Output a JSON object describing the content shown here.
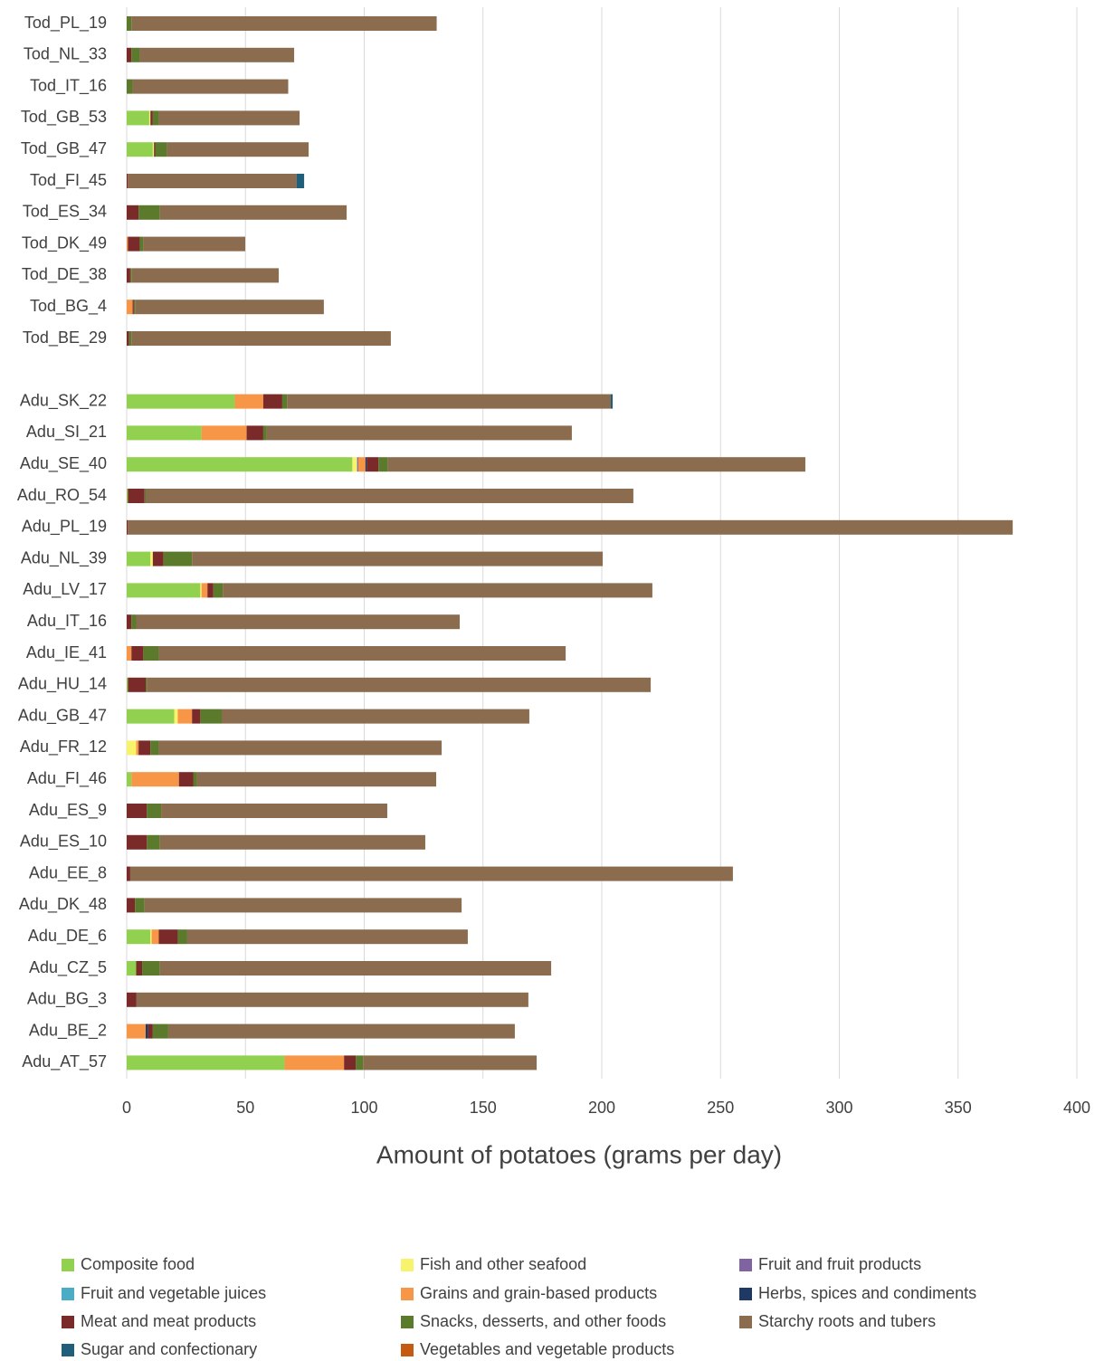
{
  "chart_data": {
    "type": "stacked-bar-horizontal",
    "x_label": "Amount of potatoes (grams per day)",
    "categories": [
      "Tod_PL_19",
      "Tod_NL_33",
      "Tod_IT_16",
      "Tod_GB_53",
      "Tod_GB_47",
      "Tod_FI_45",
      "Tod_ES_34",
      "Tod_DK_49",
      "Tod_DE_38",
      "Tod_BG_4",
      "Tod_BE_29",
      null,
      "Adu_SK_22",
      "Adu_SI_21",
      "Adu_SE_40",
      "Adu_RO_54",
      "Adu_PL_19",
      "Adu_NL_39",
      "Adu_LV_17",
      "Adu_IT_16",
      "Adu_IE_41",
      "Adu_HU_14",
      "Adu_GB_47",
      "Adu_FR_12",
      "Adu_FI_46",
      "Adu_ES_9",
      "Adu_ES_10",
      "Adu_EE_8",
      "Adu_DK_48",
      "Adu_DE_6",
      "Adu_CZ_5",
      "Adu_BG_3",
      "Adu_BE_2",
      "Adu_AT_57"
    ],
    "series": [
      {
        "name": "Composite food",
        "color": "#92d050",
        "values": [
          0,
          0,
          0,
          9.5,
          11,
          0,
          0,
          0,
          0,
          0,
          0,
          null,
          45.5,
          31.5,
          95,
          0.5,
          0,
          10,
          31,
          0,
          0,
          0.5,
          20,
          0,
          2,
          0,
          0,
          0,
          0,
          10,
          4,
          0,
          0,
          66.5
        ]
      },
      {
        "name": "Fish and other seafood",
        "color": "#f7f36d",
        "values": [
          0,
          0,
          0,
          0.5,
          0.5,
          0,
          0,
          0,
          0,
          0,
          0,
          null,
          0,
          0,
          2,
          0,
          0,
          1,
          0.5,
          0,
          0,
          0,
          1.5,
          4,
          0,
          0,
          0,
          0,
          0,
          0.5,
          0,
          0,
          0,
          0
        ]
      },
      {
        "name": "Fruit and fruit products",
        "color": "#8064a2",
        "values": [
          0,
          0,
          0,
          0,
          0,
          0,
          0,
          0,
          0,
          0,
          0,
          null,
          0,
          0,
          0.5,
          0,
          0,
          0,
          0,
          0,
          0,
          0,
          0,
          0,
          0,
          0,
          0,
          0,
          0,
          0,
          0,
          0,
          0,
          0
        ]
      },
      {
        "name": "Fruit and vegetable juices",
        "color": "#4bacc6",
        "values": [
          0,
          0,
          0,
          0,
          0,
          0,
          0,
          0,
          0,
          0,
          0,
          null,
          0,
          0,
          0,
          0,
          0,
          0,
          0,
          0,
          0,
          0,
          0,
          0,
          0,
          0,
          0,
          0,
          0,
          0,
          0,
          0,
          0,
          0
        ]
      },
      {
        "name": "Grains and grain-based products",
        "color": "#f79646",
        "values": [
          0,
          0,
          0,
          0,
          0,
          0,
          0,
          0.5,
          0,
          2.5,
          0,
          null,
          12,
          19,
          3,
          0,
          0,
          0,
          2.5,
          0,
          2,
          0,
          6,
          1,
          20,
          0,
          0,
          0,
          0,
          3,
          0,
          0,
          8,
          25
        ]
      },
      {
        "name": "Herbs, spices and condiments",
        "color": "#1f3864",
        "values": [
          0,
          0,
          0,
          0,
          0,
          0,
          0,
          0,
          0,
          0,
          0,
          null,
          0,
          0,
          0.5,
          0,
          0,
          0,
          0,
          0,
          0,
          0,
          0,
          0,
          0,
          0,
          0,
          0,
          0,
          0,
          0,
          0,
          1,
          0
        ]
      },
      {
        "name": "Meat and meat products",
        "color": "#7b2a2a",
        "values": [
          0,
          2,
          0,
          1,
          0.5,
          0.5,
          5,
          5,
          1.5,
          0.5,
          1,
          null,
          8,
          7,
          5,
          7,
          0.5,
          4.5,
          2.5,
          2,
          5,
          7.5,
          3.5,
          5,
          6,
          8.5,
          8.5,
          1.5,
          3.5,
          8,
          2.5,
          4,
          2,
          5
        ]
      },
      {
        "name": "Snacks, desserts, and other foods",
        "color": "#5b7a2c",
        "values": [
          2,
          3.5,
          2.5,
          2.5,
          5,
          0,
          9,
          1.5,
          0.5,
          0.5,
          1,
          null,
          2,
          1.5,
          4,
          0.5,
          0,
          12,
          4,
          2,
          6.5,
          0.5,
          9,
          3.5,
          1.5,
          6,
          5.5,
          0,
          4,
          4,
          7.5,
          0,
          6.5,
          3
        ]
      },
      {
        "name": "Starchy roots and tubers",
        "color": "#8c6c4e",
        "values": [
          128.5,
          65,
          65.5,
          59.3,
          59.6,
          71,
          78.6,
          42.9,
          62,
          79.5,
          109.2,
          null,
          136.3,
          128.4,
          175.7,
          205.3,
          372.5,
          172.9,
          180.8,
          136.2,
          171.3,
          212.1,
          129.5,
          119.1,
          100.8,
          95.2,
          111.7,
          253.7,
          133.5,
          118.1,
          164.7,
          165.1,
          145.9,
          73.1
        ]
      },
      {
        "name": "Sugar and confectionary",
        "color": "#215e79",
        "values": [
          0,
          0,
          0,
          0,
          0,
          3.2,
          0,
          0,
          0,
          0,
          0,
          null,
          0.8,
          0,
          0,
          0,
          0,
          0,
          0,
          0,
          0,
          0,
          0,
          0,
          0,
          0,
          0,
          0,
          0,
          0,
          0,
          0,
          0,
          0
        ]
      },
      {
        "name": "Vegetables and vegetable products",
        "color": "#c55a11",
        "values": [
          0,
          0,
          0,
          0,
          0,
          0,
          0,
          0,
          0,
          0,
          0,
          null,
          0,
          0,
          0,
          0,
          0,
          0,
          0,
          0,
          0,
          0,
          0,
          0,
          0,
          0,
          0,
          0,
          0,
          0,
          0,
          0,
          0,
          0
        ]
      }
    ],
    "xlim": [
      0,
      400
    ],
    "xticks": [
      0,
      50,
      100,
      150,
      200,
      250,
      300,
      350,
      400
    ],
    "grid": true
  }
}
